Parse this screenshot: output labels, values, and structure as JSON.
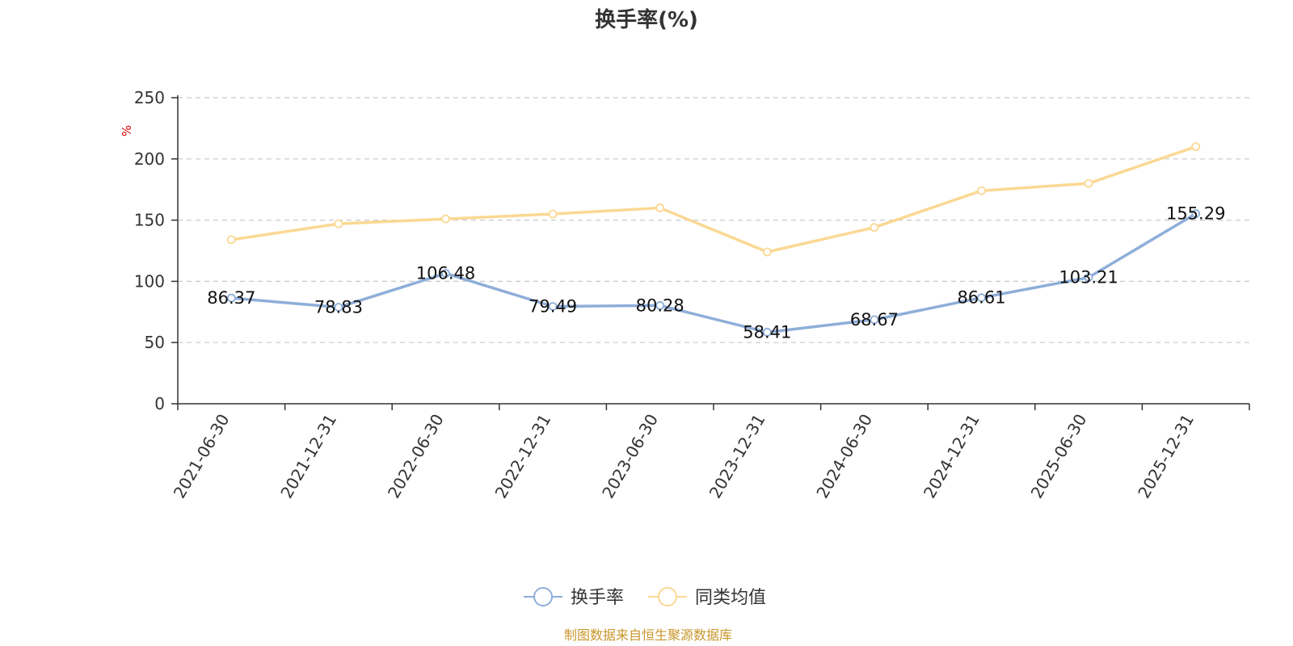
{
  "colors": {
    "series1": "#8eaed9",
    "series2": "#fbd893",
    "grid": "#c8c8c8",
    "axis": "#333333",
    "unit": "#e00000",
    "source": "#c8962a"
  },
  "chart_data": {
    "type": "line",
    "title": "换手率(%)",
    "ylabel": "%",
    "xlabel": "",
    "ylim": [
      0,
      250
    ],
    "yticks": [
      0,
      50,
      100,
      150,
      200,
      250
    ],
    "grid": true,
    "legend_position": "bottom-center",
    "categories": [
      "2021-06-30",
      "2021-12-31",
      "2022-06-30",
      "2022-12-31",
      "2023-06-30",
      "2023-12-31",
      "2024-06-30",
      "2024-12-31",
      "2025-06-30",
      "2025-12-31"
    ],
    "series": [
      {
        "name": "换手率",
        "values": [
          86.37,
          78.83,
          106.48,
          79.49,
          80.28,
          58.41,
          68.67,
          86.61,
          103.21,
          155.29
        ],
        "labels": [
          "86.37",
          "78.83",
          "106.48",
          "79.49",
          "80.28",
          "58.41",
          "68.67",
          "86.61",
          "103.21",
          "155.29"
        ]
      },
      {
        "name": "同类均值",
        "values": [
          134,
          147,
          151,
          155,
          160,
          124,
          144,
          174,
          180,
          210
        ]
      }
    ]
  },
  "source": "制图数据来自恒生聚源数据库"
}
